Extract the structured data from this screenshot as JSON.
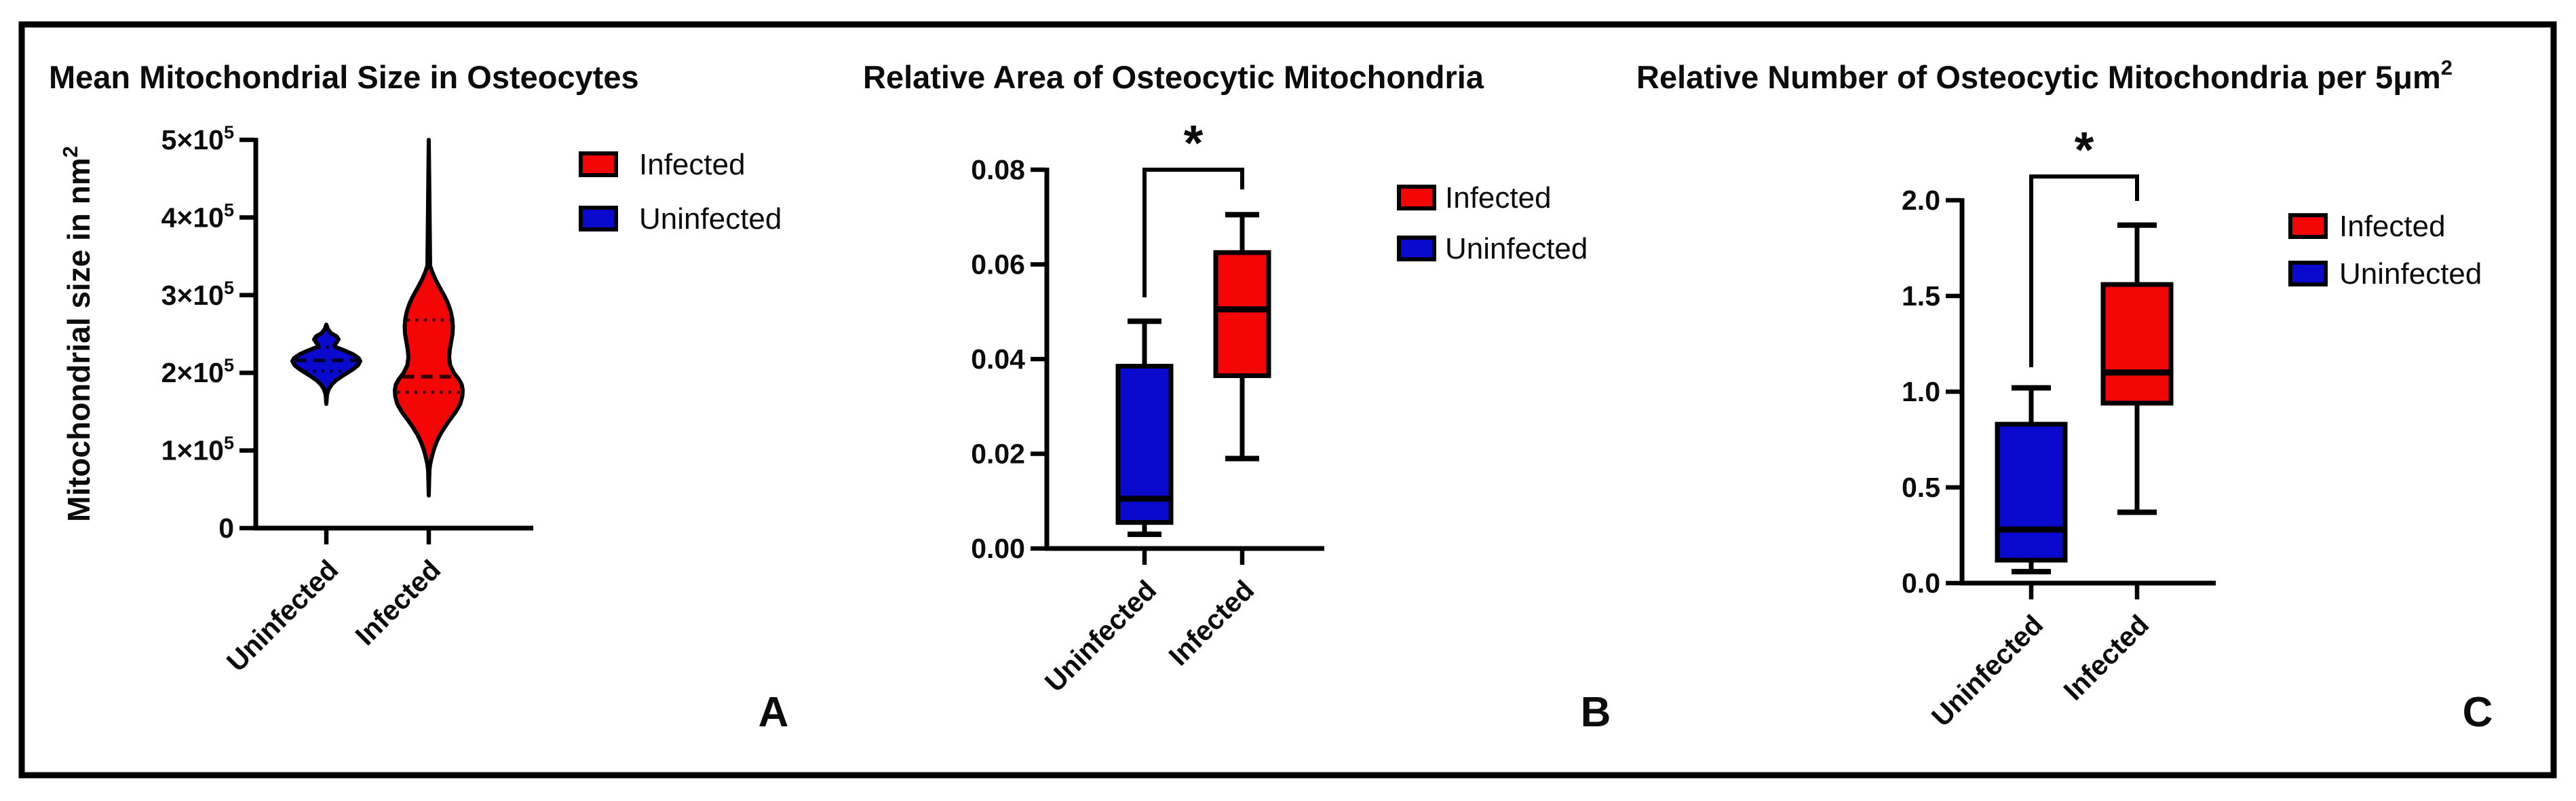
{
  "figure": {
    "background": "#ffffff",
    "border_color": "#000000",
    "infected_color": "#f40606",
    "uninfected_color": "#0a0ace"
  },
  "chart_data": [
    {
      "type": "violin",
      "panel_label": "A",
      "title": {
        "main": "Mean Mitochondrial Size in Osteocytes",
        "sup": ""
      },
      "ylabel": {
        "main": "Mitochondrial size in nm",
        "sup": "2"
      },
      "categories": [
        "Uninfected",
        "Infected"
      ],
      "ylim": [
        0,
        500000
      ],
      "ytick_values": [
        0,
        100000,
        200000,
        300000,
        400000,
        500000
      ],
      "yticks": [
        {
          "main": "0",
          "sup": ""
        },
        {
          "main": "1×10",
          "sup": "5"
        },
        {
          "main": "2×10",
          "sup": "5"
        },
        {
          "main": "3×10",
          "sup": "5"
        },
        {
          "main": "4×10",
          "sup": "5"
        },
        {
          "main": "5×10",
          "sup": "5"
        }
      ],
      "legend": [
        {
          "label": "Infected",
          "color": "#f40606"
        },
        {
          "label": "Uninfected",
          "color": "#0a0ace"
        }
      ],
      "grid": false,
      "series": [
        {
          "name": "Uninfected",
          "color": "#0a0ace",
          "min": 160000,
          "q1": 202000,
          "median": 216000,
          "q3": 233000,
          "max": 262000,
          "profile": [
            [
              262000,
              0
            ],
            [
              256000,
              0.05
            ],
            [
              251000,
              0.14
            ],
            [
              247000,
              0.3
            ],
            [
              243000,
              0.36
            ],
            [
              239000,
              0.3
            ],
            [
              235500,
              0.24
            ],
            [
              233000,
              0.28
            ],
            [
              229000,
              0.52
            ],
            [
              224000,
              0.78
            ],
            [
              219000,
              0.95
            ],
            [
              215000,
              1.0
            ],
            [
              210000,
              0.94
            ],
            [
              205000,
              0.8
            ],
            [
              200000,
              0.62
            ],
            [
              195000,
              0.44
            ],
            [
              190000,
              0.28
            ],
            [
              185000,
              0.16
            ],
            [
              179000,
              0.07
            ],
            [
              172000,
              0.02
            ],
            [
              160000,
              0
            ]
          ]
        },
        {
          "name": "Infected",
          "color": "#f40606",
          "min": 42000,
          "q1": 175000,
          "median": 195000,
          "q3": 268000,
          "max": 500000,
          "profile": [
            [
              500000,
              0
            ],
            [
              338000,
              0.04
            ],
            [
              330000,
              0.1
            ],
            [
              320000,
              0.2
            ],
            [
              310000,
              0.32
            ],
            [
              300000,
              0.45
            ],
            [
              290000,
              0.56
            ],
            [
              280000,
              0.64
            ],
            [
              270000,
              0.69
            ],
            [
              260000,
              0.71
            ],
            [
              250000,
              0.7
            ],
            [
              240000,
              0.66
            ],
            [
              230000,
              0.62
            ],
            [
              220000,
              0.6
            ],
            [
              210000,
              0.63
            ],
            [
              200000,
              0.74
            ],
            [
              192000,
              0.88
            ],
            [
              185000,
              0.97
            ],
            [
              178000,
              1.0
            ],
            [
              170000,
              0.99
            ],
            [
              160000,
              0.93
            ],
            [
              150000,
              0.8
            ],
            [
              140000,
              0.63
            ],
            [
              130000,
              0.47
            ],
            [
              120000,
              0.33
            ],
            [
              110000,
              0.22
            ],
            [
              100000,
              0.14
            ],
            [
              90000,
              0.08
            ],
            [
              82000,
              0.04
            ],
            [
              75000,
              0.02
            ],
            [
              60000,
              0.01
            ],
            [
              42000,
              0
            ]
          ]
        }
      ]
    },
    {
      "type": "box",
      "panel_label": "B",
      "title": {
        "main": "Relative Area of Osteocytic Mitochondria",
        "sup": ""
      },
      "categories": [
        "Uninfected",
        "Infected"
      ],
      "ylim": [
        0,
        0.08
      ],
      "ytick_values": [
        0,
        0.02,
        0.04,
        0.06,
        0.08
      ],
      "yticks": [
        "0.00",
        "0.02",
        "0.04",
        "0.06",
        "0.08"
      ],
      "significance_label": "*",
      "legend": [
        {
          "label": "Infected",
          "color": "#f40606"
        },
        {
          "label": "Uninfected",
          "color": "#0a0ace"
        }
      ],
      "grid": false,
      "series": [
        {
          "name": "Uninfected",
          "color": "#0a0ace",
          "whisker_low": 0.003,
          "q1": 0.0055,
          "median": 0.0105,
          "q3": 0.0385,
          "whisker_high": 0.048
        },
        {
          "name": "Infected",
          "color": "#f40606",
          "whisker_low": 0.019,
          "q1": 0.0365,
          "median": 0.0505,
          "q3": 0.0625,
          "whisker_high": 0.0705
        }
      ]
    },
    {
      "type": "box",
      "panel_label": "C",
      "title": {
        "main": "Relative Number of Osteocytic Mitochondria per 5μm",
        "sup": "2"
      },
      "categories": [
        "Uninfected",
        "Infected"
      ],
      "ylim": [
        0,
        2.0
      ],
      "ytick_values": [
        0,
        0.5,
        1.0,
        1.5,
        2.0
      ],
      "yticks": [
        "0.0",
        "0.5",
        "1.0",
        "1.5",
        "2.0"
      ],
      "significance_label": "*",
      "legend": [
        {
          "label": "Infected",
          "color": "#f40606"
        },
        {
          "label": "Uninfected",
          "color": "#0a0ace"
        }
      ],
      "grid": false,
      "series": [
        {
          "name": "Uninfected",
          "color": "#0a0ace",
          "whisker_low": 0.06,
          "q1": 0.12,
          "median": 0.28,
          "q3": 0.83,
          "whisker_high": 1.02
        },
        {
          "name": "Infected",
          "color": "#f40606",
          "whisker_low": 0.37,
          "q1": 0.94,
          "median": 1.1,
          "q3": 1.56,
          "whisker_high": 1.87
        }
      ]
    }
  ]
}
